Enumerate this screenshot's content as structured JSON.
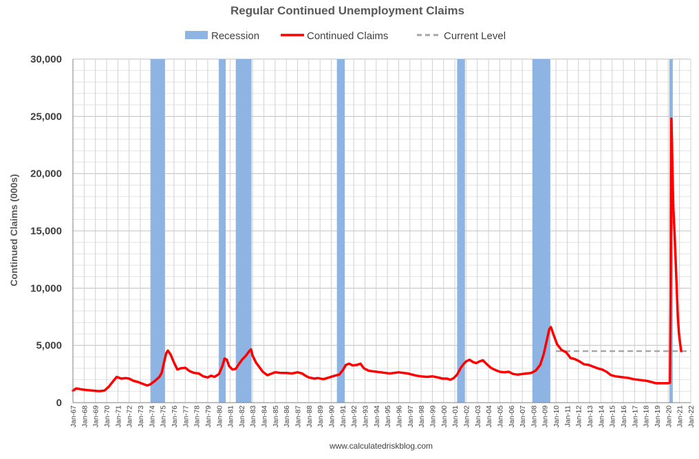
{
  "chart_data": {
    "type": "line",
    "title": "Regular Continued Unemployment Claims",
    "ylabel": "Continued Claims (000s)",
    "xlabel": "",
    "source": "www.calculatedriskblog.com",
    "ylim": [
      0,
      30000
    ],
    "yticks": [
      "0",
      "5,000",
      "10,000",
      "15,000",
      "20,000",
      "25,000",
      "30,000"
    ],
    "ytick_values": [
      0,
      5000,
      10000,
      15000,
      20000,
      25000,
      30000
    ],
    "xlim": [
      1967.0,
      2022.0
    ],
    "xticks": [
      "Jan-67",
      "Jan-68",
      "Jan-69",
      "Jan-70",
      "Jan-71",
      "Jan-72",
      "Jan-73",
      "Jan-74",
      "Jan-75",
      "Jan-76",
      "Jan-77",
      "Jan-78",
      "Jan-79",
      "Jan-80",
      "Jan-81",
      "Jan-82",
      "Jan-83",
      "Jan-84",
      "Jan-85",
      "Jan-86",
      "Jan-87",
      "Jan-88",
      "Jan-89",
      "Jan-90",
      "Jan-91",
      "Jan-92",
      "Jan-93",
      "Jan-94",
      "Jan-95",
      "Jan-96",
      "Jan-97",
      "Jan-98",
      "Jan-99",
      "Jan-00",
      "Jan-01",
      "Jan-02",
      "Jan-03",
      "Jan-04",
      "Jan-05",
      "Jan-06",
      "Jan-07",
      "Jan-08",
      "Jan-09",
      "Jan-10",
      "Jan-11",
      "Jan-12",
      "Jan-13",
      "Jan-14",
      "Jan-15",
      "Jan-16",
      "Jan-17",
      "Jan-18",
      "Jan-19",
      "Jan-20",
      "Jan-21",
      "Jan-22"
    ],
    "grid": true,
    "legend": {
      "position": "top",
      "entries": [
        {
          "name": "Recession",
          "color": "#8eb4e3",
          "style": "patch"
        },
        {
          "name": "Continued Claims",
          "color": "#ff0000",
          "style": "line"
        },
        {
          "name": "Current Level",
          "color": "#a6a6a6",
          "style": "dashed"
        }
      ]
    },
    "recessions": [
      {
        "start": 1973.9,
        "end": 1975.2
      },
      {
        "start": 1980.0,
        "end": 1980.6
      },
      {
        "start": 1981.5,
        "end": 1982.9
      },
      {
        "start": 1990.5,
        "end": 1991.2
      },
      {
        "start": 2001.2,
        "end": 2001.9
      },
      {
        "start": 2007.9,
        "end": 2009.5
      },
      {
        "start": 2020.1,
        "end": 2020.4
      }
    ],
    "current_level": {
      "value": 4500,
      "x_start": 2010.0,
      "x_end": 2022.0
    },
    "series": [
      {
        "name": "Continued Claims",
        "color": "#ff0000",
        "points": [
          [
            1967.0,
            1050
          ],
          [
            1967.3,
            1250
          ],
          [
            1967.8,
            1150
          ],
          [
            1968.3,
            1100
          ],
          [
            1968.8,
            1050
          ],
          [
            1969.3,
            1000
          ],
          [
            1969.8,
            1050
          ],
          [
            1970.2,
            1400
          ],
          [
            1970.6,
            1900
          ],
          [
            1970.9,
            2250
          ],
          [
            1971.3,
            2100
          ],
          [
            1971.7,
            2150
          ],
          [
            1972.0,
            2100
          ],
          [
            1972.4,
            1900
          ],
          [
            1972.8,
            1800
          ],
          [
            1973.2,
            1650
          ],
          [
            1973.6,
            1500
          ],
          [
            1973.9,
            1600
          ],
          [
            1974.3,
            1900
          ],
          [
            1974.7,
            2250
          ],
          [
            1974.9,
            2600
          ],
          [
            1975.1,
            3500
          ],
          [
            1975.3,
            4300
          ],
          [
            1975.45,
            4550
          ],
          [
            1975.7,
            4200
          ],
          [
            1976.0,
            3500
          ],
          [
            1976.3,
            2900
          ],
          [
            1976.6,
            3000
          ],
          [
            1977.0,
            3050
          ],
          [
            1977.4,
            2750
          ],
          [
            1977.8,
            2600
          ],
          [
            1978.2,
            2550
          ],
          [
            1978.6,
            2300
          ],
          [
            1979.0,
            2200
          ],
          [
            1979.3,
            2350
          ],
          [
            1979.6,
            2250
          ],
          [
            1980.0,
            2500
          ],
          [
            1980.3,
            3200
          ],
          [
            1980.5,
            3850
          ],
          [
            1980.7,
            3750
          ],
          [
            1980.9,
            3200
          ],
          [
            1981.2,
            2900
          ],
          [
            1981.5,
            2950
          ],
          [
            1981.8,
            3400
          ],
          [
            1982.1,
            3800
          ],
          [
            1982.4,
            4100
          ],
          [
            1982.7,
            4500
          ],
          [
            1982.85,
            4650
          ],
          [
            1983.0,
            4100
          ],
          [
            1983.3,
            3500
          ],
          [
            1983.6,
            3100
          ],
          [
            1983.9,
            2700
          ],
          [
            1984.3,
            2400
          ],
          [
            1984.6,
            2500
          ],
          [
            1985.0,
            2650
          ],
          [
            1985.5,
            2600
          ],
          [
            1986.0,
            2600
          ],
          [
            1986.5,
            2550
          ],
          [
            1987.0,
            2650
          ],
          [
            1987.4,
            2550
          ],
          [
            1987.7,
            2350
          ],
          [
            1988.0,
            2200
          ],
          [
            1988.5,
            2100
          ],
          [
            1988.8,
            2150
          ],
          [
            1989.3,
            2050
          ],
          [
            1989.8,
            2200
          ],
          [
            1990.3,
            2350
          ],
          [
            1990.7,
            2450
          ],
          [
            1991.0,
            2800
          ],
          [
            1991.3,
            3300
          ],
          [
            1991.6,
            3400
          ],
          [
            1991.9,
            3250
          ],
          [
            1992.3,
            3300
          ],
          [
            1992.6,
            3400
          ],
          [
            1992.9,
            3000
          ],
          [
            1993.3,
            2800
          ],
          [
            1993.6,
            2750
          ],
          [
            1994.0,
            2700
          ],
          [
            1994.4,
            2650
          ],
          [
            1994.8,
            2600
          ],
          [
            1995.2,
            2550
          ],
          [
            1995.6,
            2600
          ],
          [
            1996.0,
            2650
          ],
          [
            1996.4,
            2600
          ],
          [
            1996.8,
            2550
          ],
          [
            1997.2,
            2450
          ],
          [
            1997.6,
            2350
          ],
          [
            1998.0,
            2300
          ],
          [
            1998.5,
            2250
          ],
          [
            1999.0,
            2300
          ],
          [
            1999.5,
            2200
          ],
          [
            1999.9,
            2100
          ],
          [
            2000.3,
            2100
          ],
          [
            2000.6,
            2000
          ],
          [
            2000.9,
            2150
          ],
          [
            2001.2,
            2450
          ],
          [
            2001.5,
            3000
          ],
          [
            2001.8,
            3400
          ],
          [
            2002.0,
            3600
          ],
          [
            2002.3,
            3750
          ],
          [
            2002.6,
            3550
          ],
          [
            2002.9,
            3450
          ],
          [
            2003.2,
            3600
          ],
          [
            2003.5,
            3700
          ],
          [
            2003.8,
            3400
          ],
          [
            2004.2,
            3050
          ],
          [
            2004.6,
            2850
          ],
          [
            2005.0,
            2700
          ],
          [
            2005.4,
            2650
          ],
          [
            2005.8,
            2700
          ],
          [
            2006.2,
            2500
          ],
          [
            2006.6,
            2450
          ],
          [
            2007.0,
            2500
          ],
          [
            2007.4,
            2550
          ],
          [
            2007.8,
            2600
          ],
          [
            2008.2,
            2800
          ],
          [
            2008.6,
            3300
          ],
          [
            2008.9,
            4200
          ],
          [
            2009.2,
            5500
          ],
          [
            2009.4,
            6400
          ],
          [
            2009.55,
            6600
          ],
          [
            2009.8,
            5900
          ],
          [
            2010.1,
            5100
          ],
          [
            2010.5,
            4600
          ],
          [
            2010.9,
            4400
          ],
          [
            2011.3,
            3900
          ],
          [
            2011.7,
            3800
          ],
          [
            2012.1,
            3600
          ],
          [
            2012.5,
            3350
          ],
          [
            2012.9,
            3300
          ],
          [
            2013.3,
            3150
          ],
          [
            2013.7,
            3000
          ],
          [
            2014.1,
            2900
          ],
          [
            2014.5,
            2700
          ],
          [
            2014.9,
            2400
          ],
          [
            2015.3,
            2300
          ],
          [
            2015.7,
            2250
          ],
          [
            2016.1,
            2200
          ],
          [
            2016.5,
            2150
          ],
          [
            2016.9,
            2050
          ],
          [
            2017.3,
            2000
          ],
          [
            2017.7,
            1950
          ],
          [
            2018.1,
            1900
          ],
          [
            2018.5,
            1800
          ],
          [
            2018.9,
            1700
          ],
          [
            2019.3,
            1700
          ],
          [
            2019.7,
            1700
          ],
          [
            2020.0,
            1700
          ],
          [
            2020.15,
            1750
          ],
          [
            2020.22,
            10000
          ],
          [
            2020.28,
            24800
          ],
          [
            2020.32,
            23000
          ],
          [
            2020.38,
            20000
          ],
          [
            2020.45,
            17000
          ],
          [
            2020.55,
            15000
          ],
          [
            2020.65,
            12500
          ],
          [
            2020.75,
            10000
          ],
          [
            2020.85,
            7500
          ],
          [
            2020.95,
            6000
          ],
          [
            2021.05,
            5200
          ],
          [
            2021.15,
            4500
          ]
        ]
      }
    ]
  }
}
